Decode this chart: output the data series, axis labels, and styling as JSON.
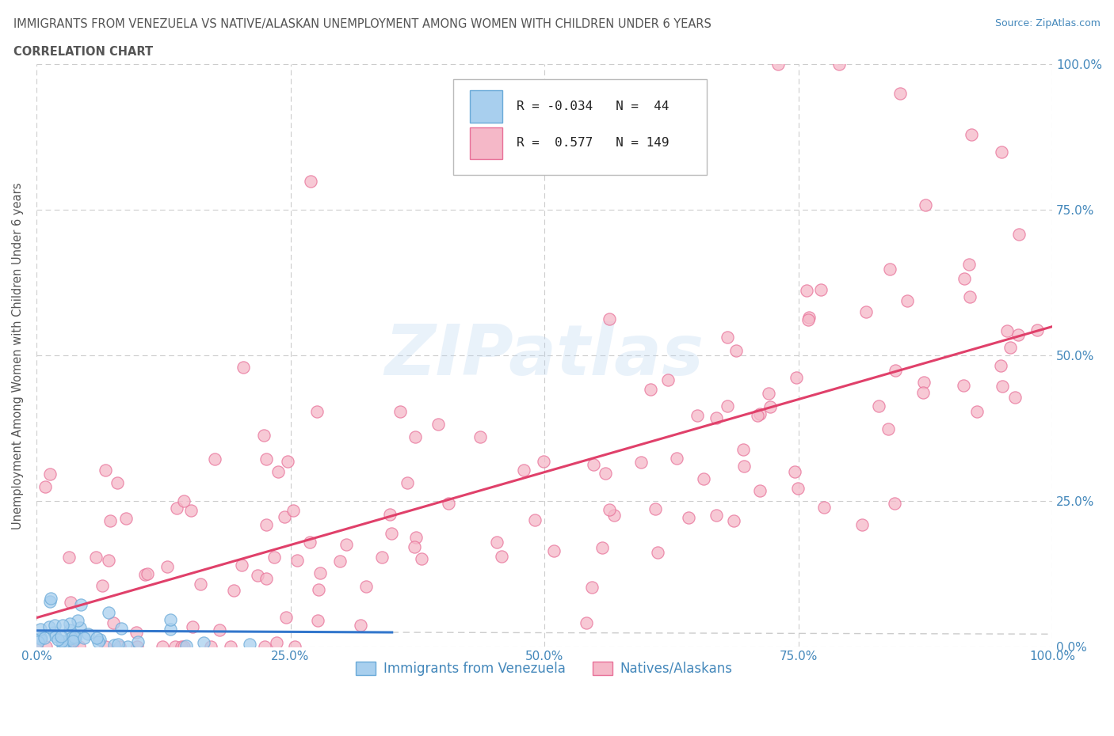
{
  "title": "IMMIGRANTS FROM VENEZUELA VS NATIVE/ALASKAN UNEMPLOYMENT AMONG WOMEN WITH CHILDREN UNDER 6 YEARS",
  "subtitle": "CORRELATION CHART",
  "source": "Source: ZipAtlas.com",
  "ylabel": "Unemployment Among Women with Children Under 6 years",
  "x_min": 0.0,
  "x_max": 1.0,
  "y_min": 0.0,
  "y_max": 1.0,
  "x_ticks": [
    0.0,
    0.25,
    0.5,
    0.75,
    1.0
  ],
  "x_tick_labels": [
    "0.0%",
    "25.0%",
    "50.0%",
    "75.0%",
    "100.0%"
  ],
  "y_ticks": [
    0.0,
    0.25,
    0.5,
    0.75,
    1.0
  ],
  "y_tick_labels": [
    "0.0%",
    "25.0%",
    "50.0%",
    "75.0%",
    "100.0%"
  ],
  "blue_color": "#A8CFEE",
  "blue_edge": "#6AAAD8",
  "pink_color": "#F5B8C8",
  "pink_edge": "#E87098",
  "trend_blue": "#3377CC",
  "trend_pink": "#E0406A",
  "R_blue": -0.034,
  "N_blue": 44,
  "R_pink": 0.577,
  "N_pink": 149,
  "legend_label_blue": "Immigrants from Venezuela",
  "legend_label_pink": "Natives/Alaskans",
  "watermark_text": "ZIPatlas",
  "background_color": "#FFFFFF",
  "grid_color": "#CCCCCC",
  "title_color": "#555555",
  "axis_label_color": "#555555",
  "tick_color": "#4488BB",
  "pink_trend_x0": 0.0,
  "pink_trend_y0": 0.05,
  "pink_trend_x1": 1.0,
  "pink_trend_y1": 0.55,
  "blue_trend_x0": 0.0,
  "blue_trend_y0": 0.028,
  "blue_trend_x1": 0.35,
  "blue_trend_y1": 0.025
}
